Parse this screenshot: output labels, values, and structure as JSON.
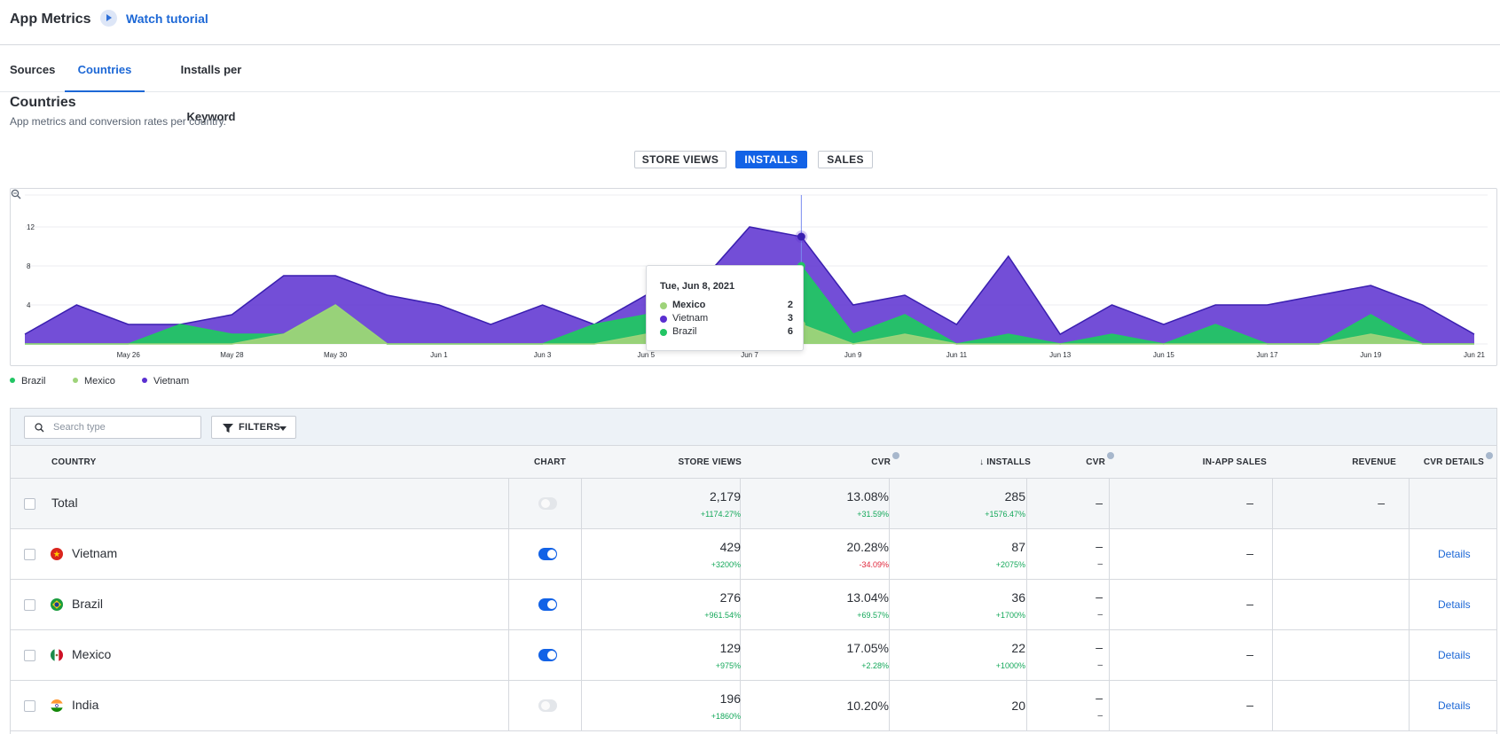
{
  "header": {
    "app_title": "App Metrics",
    "tutorial_label": "Watch tutorial"
  },
  "tabs": [
    {
      "label": "Sources",
      "active": false
    },
    {
      "label": "Countries",
      "active": true
    },
    {
      "label": "Installs per Keyword",
      "active": false
    }
  ],
  "section": {
    "title": "Countries",
    "subtitle": "App metrics and conversion rates per country."
  },
  "metric_toggles": [
    {
      "label": "STORE VIEWS",
      "active": false
    },
    {
      "label": "INSTALLS",
      "active": true
    },
    {
      "label": "SALES",
      "active": false
    }
  ],
  "icons": {
    "tutorial": "play-circle-icon",
    "zoom": "zoom-reset-icon",
    "search": "search-icon",
    "filter": "funnel-icon",
    "caret": "caret-down-icon",
    "help": "help-circle-icon",
    "sort": "arrow-down-icon"
  },
  "colors": {
    "accent": "#1262e6",
    "link": "#1d68d6",
    "vietnam": "#5a2fd0",
    "brazil": "#22c564",
    "mexico": "#9ed37a",
    "positive": "#14a85a",
    "negative": "#e0263b"
  },
  "chart_data": {
    "type": "area",
    "title": "",
    "xlabel": "",
    "ylabel": "",
    "x": [
      "May 24",
      "May 25",
      "May 26",
      "May 27",
      "May 28",
      "May 29",
      "May 30",
      "May 31",
      "Jun 1",
      "Jun 2",
      "Jun 3",
      "Jun 4",
      "Jun 5",
      "Jun 6",
      "Jun 7",
      "Jun 8",
      "Jun 9",
      "Jun 10",
      "Jun 11",
      "Jun 12",
      "Jun 13",
      "Jun 14",
      "Jun 15",
      "Jun 16",
      "Jun 17",
      "Jun 18",
      "Jun 19",
      "Jun 20",
      "Jun 21"
    ],
    "x_tick_labels": [
      "May 26",
      "May 28",
      "May 30",
      "Jun 1",
      "Jun 3",
      "Jun 5",
      "Jun 7",
      "Jun 9",
      "Jun 11",
      "Jun 13",
      "Jun 15",
      "Jun 17",
      "Jun 19",
      "Jun 21"
    ],
    "y_tick_labels": [
      "4",
      "8",
      "12"
    ],
    "ylim": [
      0,
      15
    ],
    "stacked": true,
    "grid": true,
    "legend_position": "bottom-left",
    "series": [
      {
        "name": "Mexico",
        "color": "#9ed37a",
        "values": [
          0,
          0,
          0,
          0,
          0,
          1,
          4,
          0,
          0,
          0,
          0,
          0,
          1,
          0,
          0,
          2,
          0,
          1,
          0,
          0,
          0,
          0,
          0,
          0,
          0,
          0,
          1,
          0,
          0
        ]
      },
      {
        "name": "Brazil",
        "color": "#22c564",
        "values": [
          0,
          0,
          0,
          2,
          1,
          0,
          0,
          0,
          0,
          0,
          0,
          2,
          2,
          3,
          3,
          6,
          1,
          2,
          0,
          1,
          0,
          1,
          0,
          2,
          0,
          0,
          2,
          0,
          0
        ]
      },
      {
        "name": "Vietnam",
        "color": "#5a2fd0",
        "values": [
          1,
          4,
          2,
          0,
          2,
          6,
          3,
          5,
          4,
          2,
          4,
          0,
          2,
          3,
          9,
          3,
          3,
          2,
          2,
          8,
          1,
          3,
          2,
          2,
          4,
          5,
          3,
          4,
          1
        ]
      }
    ],
    "tooltip": {
      "date": "Tue, Jun 8, 2021",
      "rows": [
        {
          "name": "Mexico",
          "value": "2",
          "color": "#9ed37a"
        },
        {
          "name": "Vietnam",
          "value": "3",
          "color": "#5a2fd0"
        },
        {
          "name": "Brazil",
          "value": "6",
          "color": "#22c564"
        }
      ]
    }
  },
  "legend": [
    {
      "name": "Brazil",
      "color": "#22c564"
    },
    {
      "name": "Mexico",
      "color": "#9ed37a"
    },
    {
      "name": "Vietnam",
      "color": "#5a2fd0"
    }
  ],
  "table": {
    "search_placeholder": "Search type",
    "filters_label": "FILTERS",
    "columns": [
      "COUNTRY",
      "CHART",
      "STORE VIEWS",
      "CVR",
      "INSTALLS",
      "CVR",
      "IN-APP SALES",
      "REVENUE",
      "CVR DETAILS"
    ],
    "rows": [
      {
        "country": "Total",
        "chart_on": false,
        "store_views": "2,179",
        "store_views_delta": "+1174.27%",
        "cvr": "13.08%",
        "cvr_delta": "+31.59%",
        "cvr_delta_type": "pos",
        "installs": "285",
        "installs_delta": "+1576.47%",
        "cvr2": "–",
        "cvr2_sub": "",
        "inapp": "–",
        "revenue": "–",
        "details": ""
      },
      {
        "country": "Vietnam",
        "chart_on": true,
        "store_views": "429",
        "store_views_delta": "+3200%",
        "cvr": "20.28%",
        "cvr_delta": "-34.09%",
        "cvr_delta_type": "neg",
        "installs": "87",
        "installs_delta": "+2075%",
        "cvr2": "–",
        "cvr2_sub": "–",
        "inapp": "–",
        "revenue": "",
        "details": "Details"
      },
      {
        "country": "Brazil",
        "chart_on": true,
        "store_views": "276",
        "store_views_delta": "+961.54%",
        "cvr": "13.04%",
        "cvr_delta": "+69.57%",
        "cvr_delta_type": "pos",
        "installs": "36",
        "installs_delta": "+1700%",
        "cvr2": "–",
        "cvr2_sub": "–",
        "inapp": "–",
        "revenue": "",
        "details": "Details"
      },
      {
        "country": "Mexico",
        "chart_on": true,
        "store_views": "129",
        "store_views_delta": "+975%",
        "cvr": "17.05%",
        "cvr_delta": "+2.28%",
        "cvr_delta_type": "pos",
        "installs": "22",
        "installs_delta": "+1000%",
        "cvr2": "–",
        "cvr2_sub": "–",
        "inapp": "–",
        "revenue": "",
        "details": "Details"
      },
      {
        "country": "India",
        "chart_on": false,
        "store_views": "196",
        "store_views_delta": "+1860%",
        "cvr": "10.20%",
        "cvr_delta": "",
        "cvr_delta_type": "pos",
        "installs": "20",
        "installs_delta": "",
        "cvr2": "–",
        "cvr2_sub": "–",
        "inapp": "–",
        "revenue": "",
        "details": "Details"
      }
    ]
  }
}
